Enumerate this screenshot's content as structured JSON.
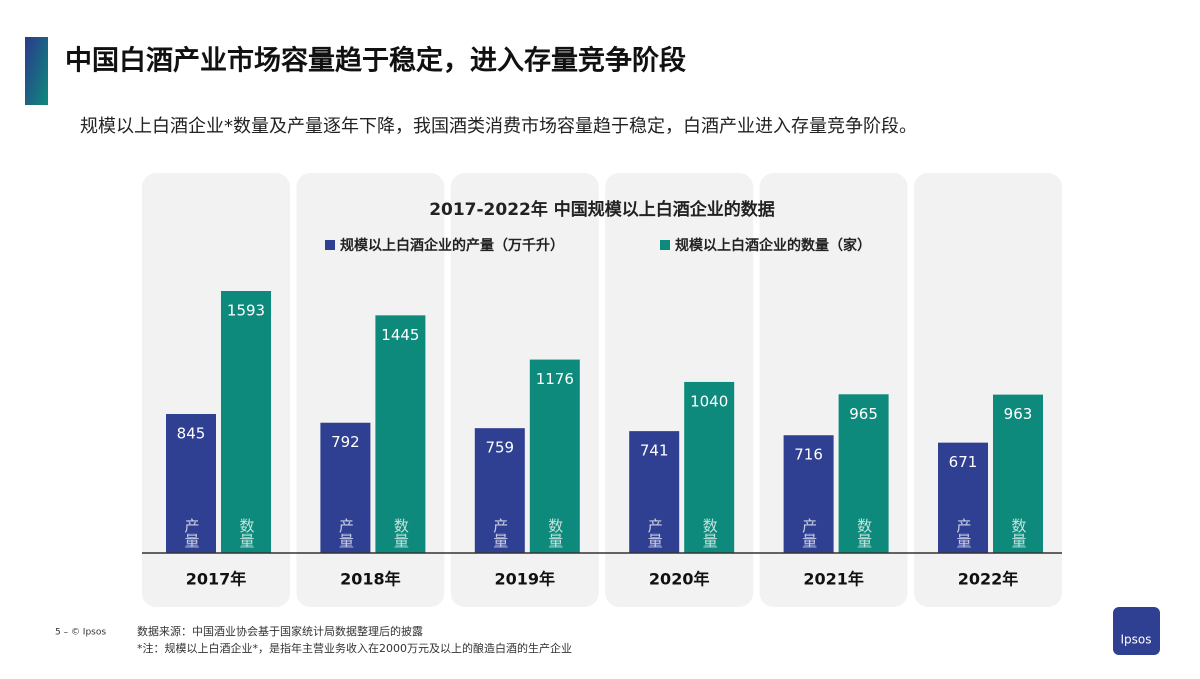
{
  "header": {
    "title": "中国白酒产业市场容量趋于稳定，进入存量竞争阶段",
    "subtitle": "规模以上白酒企业*数量及产量逐年下降，我国酒类消费市场容量趋于稳定，白酒产业进入存量竞争阶段。"
  },
  "chart_data": {
    "type": "bar",
    "title": "2017-2022年 中国规模以上白酒企业的数据",
    "categories": [
      "2017年",
      "2018年",
      "2019年",
      "2020年",
      "2021年",
      "2022年"
    ],
    "series": [
      {
        "name": "规模以上白酒企业的产量（万千升）",
        "short_label": "产量",
        "color": "#2f3f92",
        "values": [
          845,
          792,
          759,
          741,
          716,
          671
        ]
      },
      {
        "name": "规模以上白酒企业的数量（家）",
        "short_label": "数量",
        "color": "#0e8a7c",
        "values": [
          1593,
          1445,
          1176,
          1040,
          965,
          963
        ]
      }
    ]
  },
  "footer": {
    "page": "5 – © Ipsos",
    "source": "数据来源：中国酒业协会基于国家统计局数据整理后的披露",
    "note": "*注：规模以上白酒企业*，是指年主营业务收入在2000万元及以上的酿造白酒的生产企业"
  },
  "logo": "Ipsos"
}
